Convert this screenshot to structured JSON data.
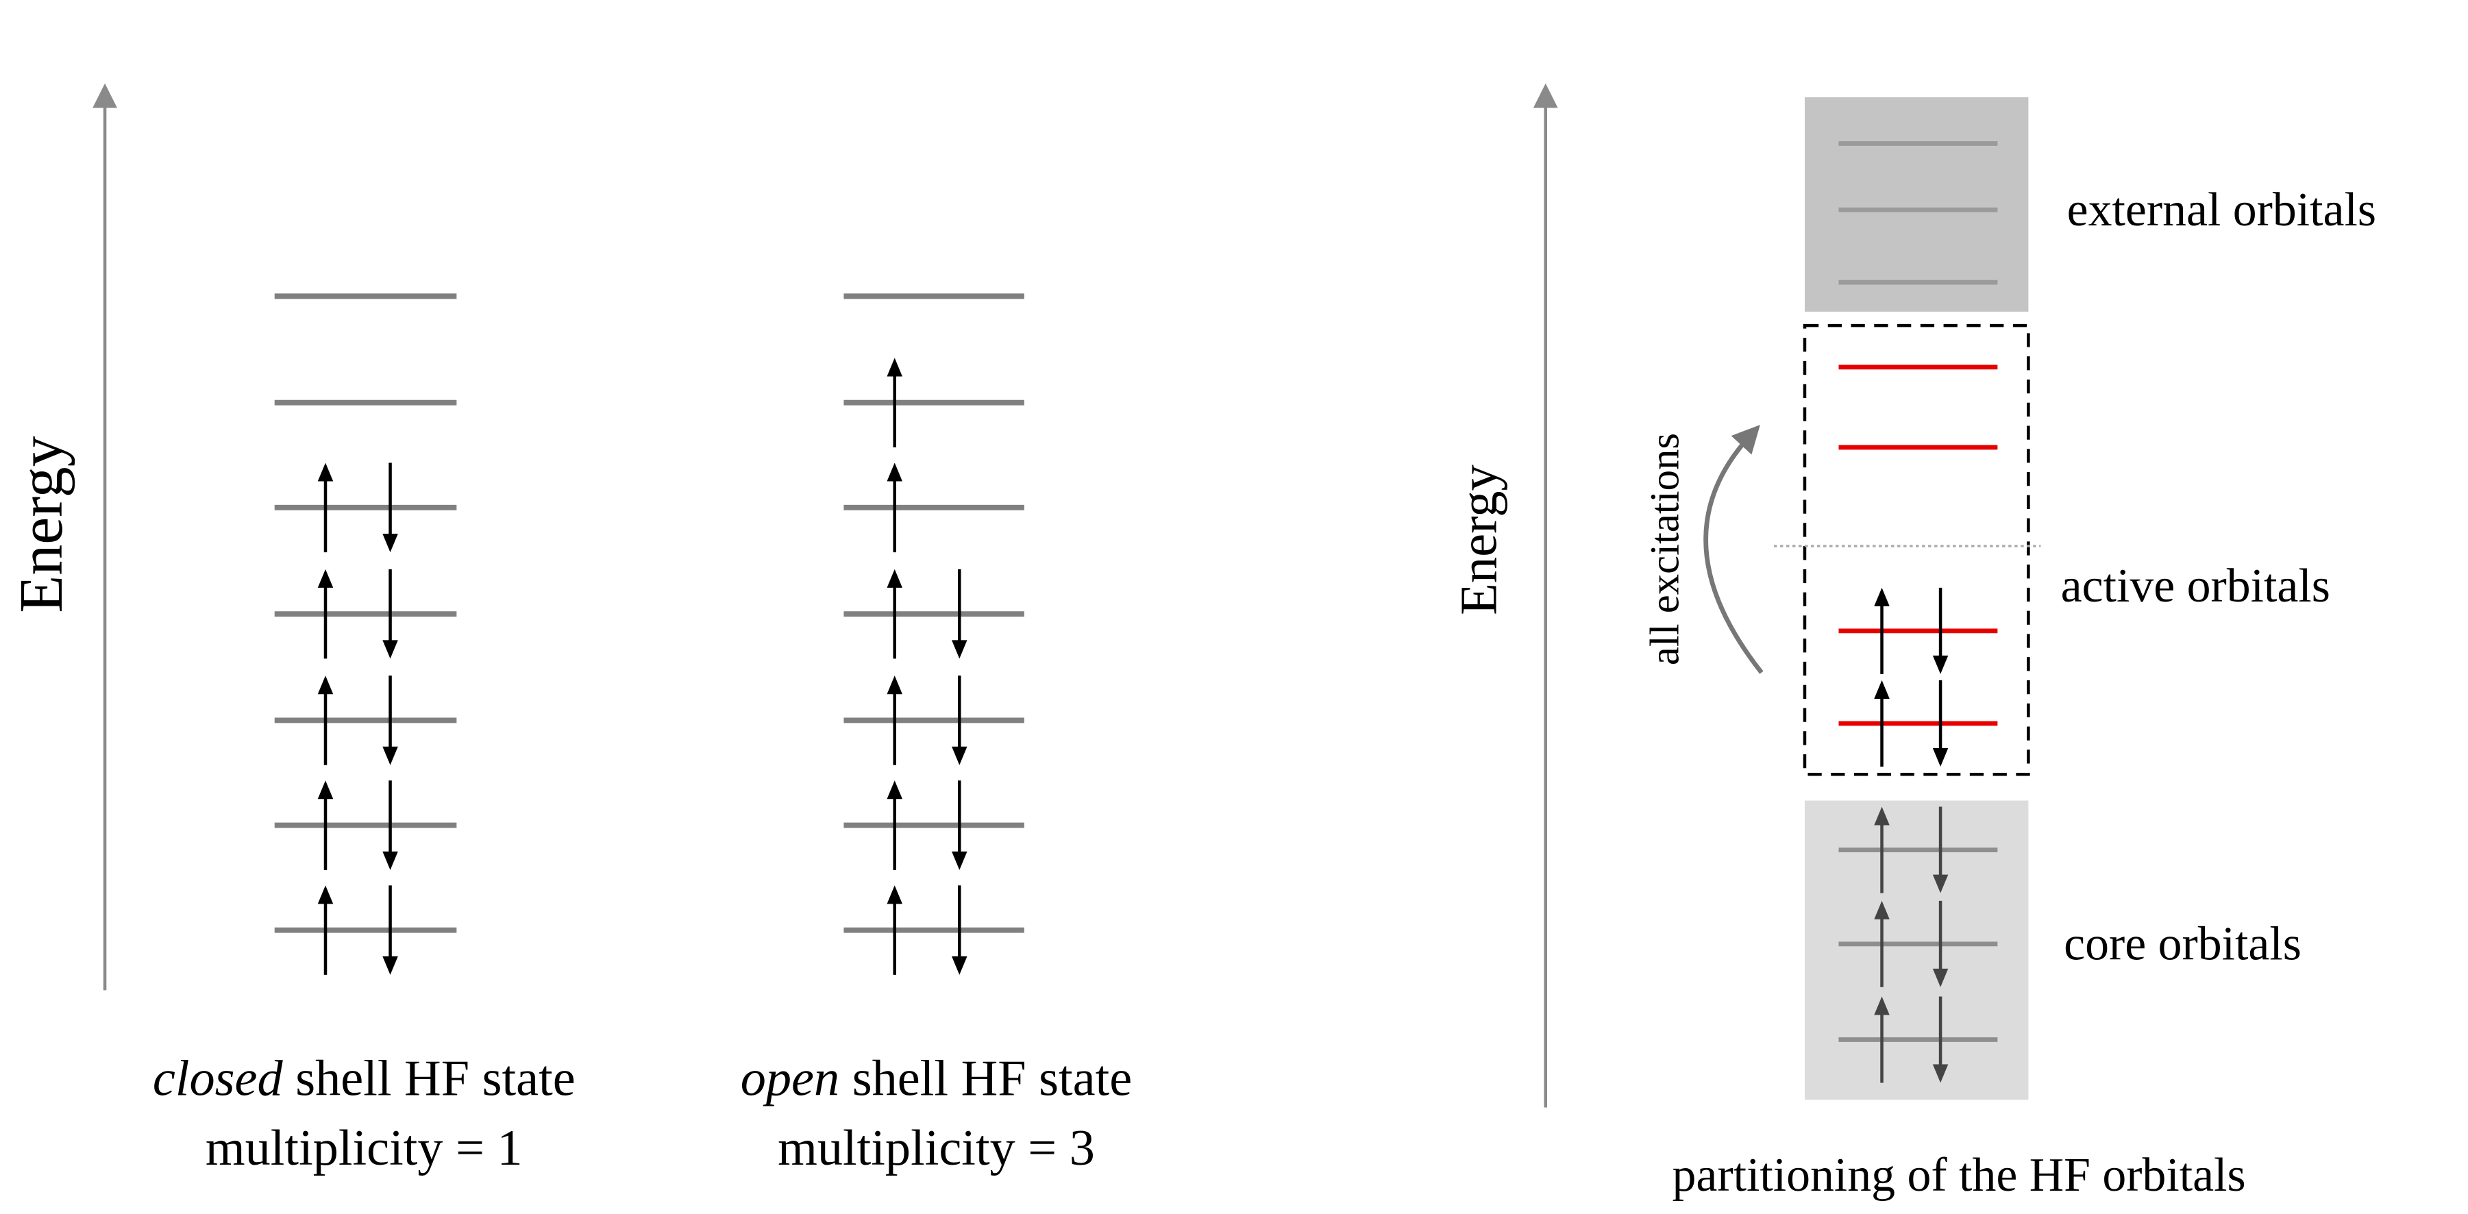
{
  "colors": {
    "axis": "#8a8a8a",
    "level": "#808080",
    "active_level": "#e60000",
    "external_fill": "#c4c4c4",
    "external_level": "#9a9a9a",
    "core_fill": "#dcdcdc",
    "core_level": "#8e8e8e",
    "core_electron": "#444444",
    "electron": "#000000"
  },
  "closed_shell": {
    "axis_label": "Energy",
    "caption_italic": "closed",
    "caption_rest": " shell HF state",
    "multiplicity": "multiplicity = 1",
    "occupations_top_to_bottom": [
      "",
      "",
      "ud",
      "ud",
      "ud",
      "ud",
      "ud"
    ]
  },
  "open_shell": {
    "caption_italic": "open",
    "caption_rest": " shell HF state",
    "multiplicity": "multiplicity = 3",
    "occupations_top_to_bottom": [
      "",
      "u",
      "u",
      "ud",
      "ud",
      "ud",
      "ud"
    ]
  },
  "partitioning": {
    "axis_label": "Energy",
    "excitation_label": "all excitations",
    "external_label": "external orbitals",
    "active_label": "active orbitals",
    "core_label": "core orbitals",
    "caption": "partitioning of the HF orbitals",
    "external_occupations": [
      "",
      "",
      ""
    ],
    "active_occupations": [
      "",
      "",
      "ud",
      "ud"
    ],
    "core_occupations": [
      "ud",
      "ud",
      "ud"
    ]
  }
}
